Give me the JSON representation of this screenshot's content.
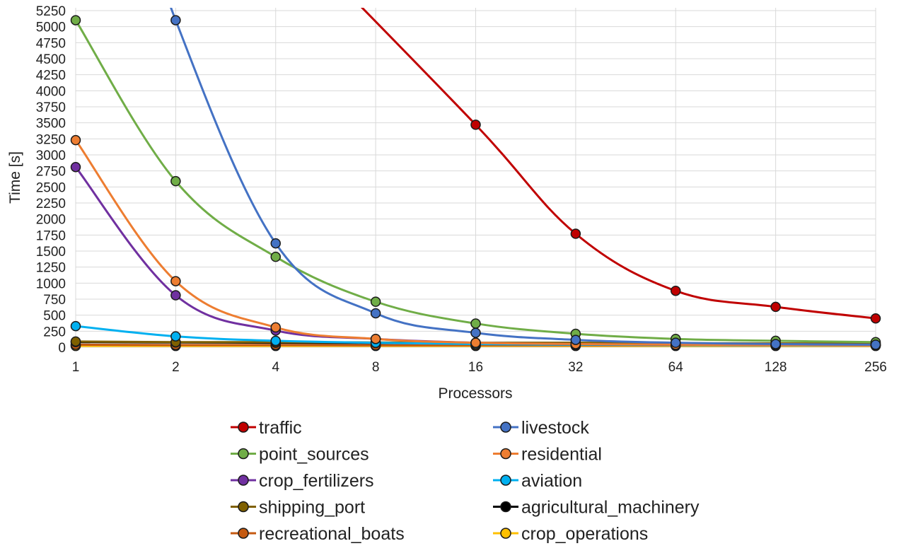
{
  "chart_data": {
    "type": "line",
    "xlabel": "Processors",
    "ylabel": "Time [s]",
    "x": [
      1,
      2,
      4,
      8,
      16,
      32,
      64,
      128,
      256
    ],
    "x_scale": "log2",
    "ylim": [
      0,
      5250
    ],
    "y_ticks": [
      0,
      250,
      500,
      750,
      1000,
      1250,
      1500,
      1750,
      2000,
      2250,
      2500,
      2750,
      3000,
      3250,
      3500,
      3750,
      4000,
      4250,
      4500,
      4750,
      5000,
      5250
    ],
    "grid": true,
    "legend_position": "bottom",
    "series": [
      {
        "name": "traffic",
        "color": "#c00000",
        "values": [
          null,
          null,
          null,
          null,
          3470,
          1770,
          880,
          630,
          450
        ]
      },
      {
        "name": "livestock",
        "color": "#4472c4",
        "values": [
          null,
          5100,
          1620,
          530,
          225,
          115,
          70,
          50,
          40
        ]
      },
      {
        "name": "point_sources",
        "color": "#70ad47",
        "values": [
          5100,
          2590,
          1410,
          710,
          370,
          210,
          130,
          100,
          80
        ]
      },
      {
        "name": "residential",
        "color": "#ed7d31",
        "values": [
          3230,
          1030,
          310,
          130,
          70,
          50,
          40,
          35,
          30
        ]
      },
      {
        "name": "crop_fertilizers",
        "color": "#7030a0",
        "values": [
          2810,
          810,
          260,
          130,
          70,
          50,
          40,
          35,
          30
        ]
      },
      {
        "name": "aviation",
        "color": "#00b0f0",
        "values": [
          330,
          170,
          100,
          70,
          50,
          40,
          35,
          30,
          30
        ]
      },
      {
        "name": "shipping_port",
        "color": "#7f6000",
        "values": [
          90,
          80,
          80,
          75,
          70,
          70,
          65,
          60,
          60
        ]
      },
      {
        "name": "agricultural_machinery",
        "color": "#000000",
        "values": [
          80,
          75,
          70,
          65,
          60,
          55,
          55,
          50,
          50
        ]
      },
      {
        "name": "recreational_boats",
        "color": "#c55a11",
        "values": [
          40,
          35,
          35,
          30,
          30,
          30,
          30,
          30,
          30
        ]
      },
      {
        "name": "crop_operations",
        "color": "#ffc000",
        "values": [
          20,
          20,
          20,
          20,
          20,
          20,
          20,
          20,
          20
        ]
      }
    ]
  }
}
